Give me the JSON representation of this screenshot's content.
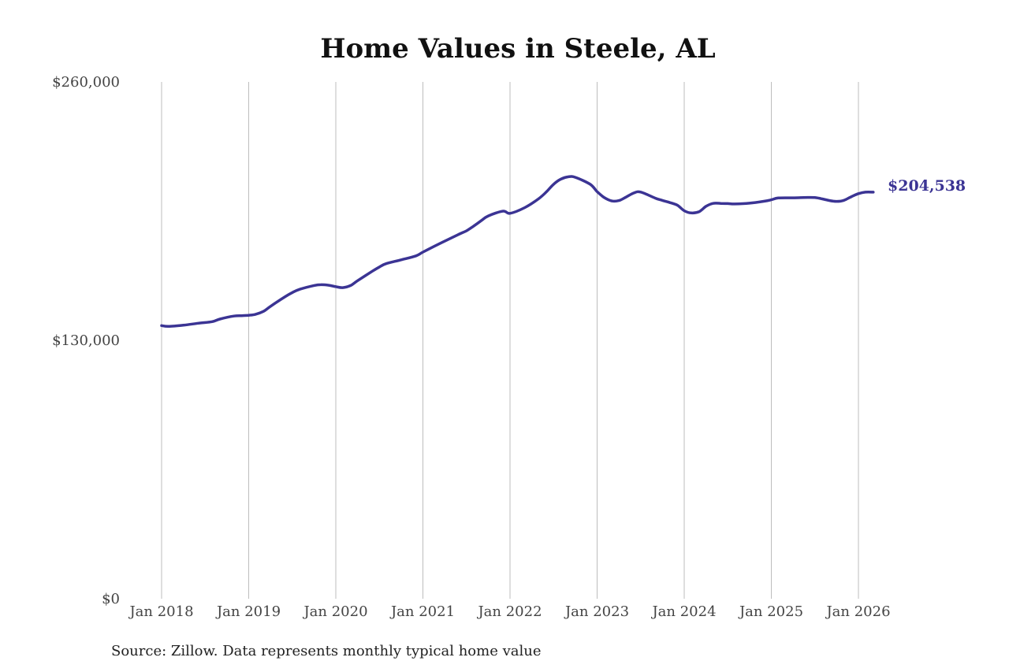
{
  "chart_data": {
    "type": "line",
    "title": "Home Values in Steele, AL",
    "xlabel": "",
    "ylabel": "",
    "ylim": [
      0,
      260000
    ],
    "y_ticks": [
      {
        "value": 0,
        "label": "$0"
      },
      {
        "value": 130000,
        "label": "$130,000"
      },
      {
        "value": 260000,
        "label": "$260,000"
      }
    ],
    "x_ticks": [
      {
        "value": 2018,
        "label": "Jan 2018"
      },
      {
        "value": 2019,
        "label": "Jan 2019"
      },
      {
        "value": 2020,
        "label": "Jan 2020"
      },
      {
        "value": 2021,
        "label": "Jan 2021"
      },
      {
        "value": 2022,
        "label": "Jan 2022"
      },
      {
        "value": 2023,
        "label": "Jan 2023"
      },
      {
        "value": 2024,
        "label": "Jan 2024"
      },
      {
        "value": 2025,
        "label": "Jan 2025"
      },
      {
        "value": 2026,
        "label": "Jan 2026"
      }
    ],
    "xlim": [
      2018,
      2026.17
    ],
    "grid": "vertical",
    "series": [
      {
        "name": "Typical home value",
        "color": "#3b3494",
        "x": [
          2018.0,
          2018.08,
          2018.25,
          2018.42,
          2018.58,
          2018.67,
          2018.83,
          2018.92,
          2019.0,
          2019.08,
          2019.17,
          2019.25,
          2019.42,
          2019.5,
          2019.58,
          2019.75,
          2019.83,
          2019.92,
          2020.0,
          2020.08,
          2020.17,
          2020.25,
          2020.42,
          2020.5,
          2020.58,
          2020.75,
          2020.92,
          2021.0,
          2021.17,
          2021.33,
          2021.42,
          2021.5,
          2021.58,
          2021.67,
          2021.75,
          2021.92,
          2022.0,
          2022.17,
          2022.33,
          2022.42,
          2022.5,
          2022.58,
          2022.67,
          2022.75,
          2022.92,
          2023.0,
          2023.08,
          2023.17,
          2023.25,
          2023.33,
          2023.42,
          2023.5,
          2023.67,
          2023.75,
          2023.83,
          2023.92,
          2024.0,
          2024.08,
          2024.17,
          2024.25,
          2024.33,
          2024.42,
          2024.5,
          2024.58,
          2024.75,
          2024.92,
          2025.0,
          2025.08,
          2025.25,
          2025.42,
          2025.5,
          2025.58,
          2025.67,
          2025.75,
          2025.83,
          2025.92,
          2026.0,
          2026.08,
          2026.17
        ],
        "values": [
          137400,
          137000,
          137600,
          138600,
          139400,
          140700,
          142200,
          142400,
          142600,
          143100,
          144600,
          147100,
          152000,
          154000,
          155600,
          157600,
          158000,
          157700,
          157000,
          156500,
          157600,
          160000,
          164800,
          166900,
          168600,
          170500,
          172500,
          174400,
          178200,
          181600,
          183500,
          185100,
          187400,
          190200,
          192600,
          195000,
          193900,
          196800,
          201300,
          204800,
          208500,
          211000,
          212300,
          212000,
          208500,
          204800,
          201900,
          200100,
          200300,
          202000,
          204100,
          204600,
          201500,
          200400,
          199400,
          198000,
          195200,
          194100,
          194700,
          197400,
          198900,
          198900,
          198800,
          198600,
          199000,
          200000,
          200700,
          201600,
          201700,
          201900,
          201800,
          201200,
          200300,
          199900,
          200400,
          202300,
          203800,
          204538,
          204538
        ]
      }
    ],
    "end_label": "$204,538"
  },
  "footer": {
    "source": "Source: Zillow. Data represents monthly typical home value"
  }
}
